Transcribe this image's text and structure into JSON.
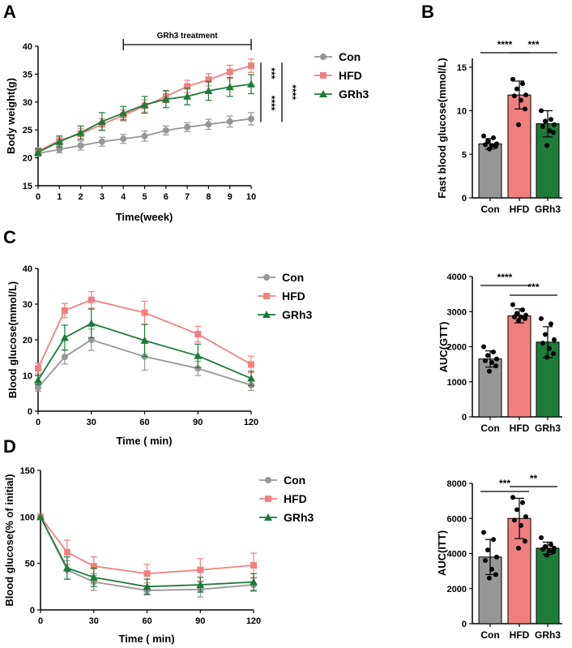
{
  "colors": {
    "con": "#969696",
    "hfd": "#F08080",
    "grh3": "#1E7B3A",
    "axis": "#000000"
  },
  "legend": [
    {
      "key": "con",
      "label": "Con",
      "marker": "circle"
    },
    {
      "key": "hfd",
      "label": "HFD",
      "marker": "square"
    },
    {
      "key": "grh3",
      "label": "GRh3",
      "marker": "triangle"
    }
  ],
  "chart_data": [
    {
      "panel": "A",
      "type": "line",
      "xlabel": "Time(week)",
      "ylabel": "Body weight(g)",
      "xlim": [
        0,
        10
      ],
      "ylim": [
        15,
        40
      ],
      "xticks": [
        0,
        1,
        2,
        3,
        4,
        5,
        6,
        7,
        8,
        9,
        10
      ],
      "yticks": [
        15,
        20,
        25,
        30,
        35,
        40
      ],
      "treatment_label": "GRh3 treatment",
      "treatment_range": [
        4,
        10
      ],
      "x": [
        0,
        1,
        2,
        3,
        4,
        5,
        6,
        7,
        8,
        9,
        10
      ],
      "series": [
        {
          "key": "con",
          "name": "Con",
          "values": [
            20.8,
            21.5,
            22.2,
            22.9,
            23.4,
            23.9,
            24.9,
            25.5,
            26.0,
            26.5,
            27.0
          ],
          "err": [
            0.5,
            0.6,
            0.8,
            0.8,
            0.8,
            0.9,
            0.8,
            0.8,
            0.9,
            1.0,
            1.1
          ]
        },
        {
          "key": "hfd",
          "name": "HFD",
          "values": [
            21.2,
            23.1,
            24.3,
            26.0,
            27.6,
            29.3,
            31.0,
            32.8,
            34.0,
            35.4,
            36.5
          ],
          "err": [
            0.6,
            0.8,
            0.9,
            1.0,
            1.0,
            1.1,
            1.1,
            1.1,
            1.1,
            1.2,
            1.2
          ]
        },
        {
          "key": "grh3",
          "name": "GRh3",
          "values": [
            21.0,
            22.9,
            24.5,
            26.5,
            28.0,
            29.5,
            30.5,
            31.0,
            32.0,
            32.7,
            33.2
          ],
          "err": [
            0.6,
            1.0,
            1.2,
            1.6,
            1.2,
            1.5,
            1.5,
            1.5,
            1.7,
            1.7,
            1.7
          ]
        }
      ],
      "significance": [
        {
          "label": "***",
          "from": "hfd",
          "to": "grh3"
        },
        {
          "label": "****",
          "from": "grh3",
          "to": "con"
        },
        {
          "label": "****",
          "from": "hfd",
          "to": "con"
        }
      ]
    },
    {
      "panel": "B",
      "type": "bar",
      "ylabel": "Fast blood glucose(mmol/L)",
      "ylim": [
        0,
        16
      ],
      "yticks": [
        0,
        5,
        10,
        15
      ],
      "categories": [
        "Con",
        "HFD",
        "GRh3"
      ],
      "values": [
        6.2,
        11.8,
        8.5
      ],
      "err": [
        0.6,
        1.6,
        1.5
      ],
      "points": [
        [
          7.1,
          6.9,
          6.5,
          6.2,
          6.1,
          6.0,
          5.9,
          5.6
        ],
        [
          13.6,
          13.1,
          12.5,
          11.8,
          11.7,
          11.2,
          10.2,
          8.4
        ],
        [
          10.0,
          9.0,
          8.8,
          8.4,
          8.2,
          7.7,
          7.5,
          6.0
        ]
      ],
      "significance": [
        {
          "label": "****",
          "from": 0,
          "to": 1
        },
        {
          "label": "***",
          "from": 1,
          "to": 2
        }
      ]
    },
    {
      "panel": "C",
      "type": "line",
      "xlabel": "Time ( min)",
      "ylabel": "Blood glucose(mmol/L)",
      "xlim": [
        0,
        120
      ],
      "ylim": [
        0,
        40
      ],
      "xticks": [
        0,
        30,
        60,
        90,
        120
      ],
      "yticks": [
        0,
        10,
        20,
        30,
        40
      ],
      "x": [
        0,
        15,
        30,
        60,
        90,
        120
      ],
      "series": [
        {
          "key": "con",
          "name": "Con",
          "values": [
            6.6,
            15.2,
            20.0,
            15.3,
            12.0,
            7.3
          ],
          "err": [
            1.0,
            2.0,
            3.0,
            3.8,
            2.0,
            1.5
          ]
        },
        {
          "key": "hfd",
          "name": "HFD",
          "values": [
            12.0,
            28.2,
            31.2,
            27.6,
            21.6,
            13.1
          ],
          "err": [
            1.5,
            2.0,
            2.3,
            3.2,
            2.2,
            2.3
          ]
        },
        {
          "key": "grh3",
          "name": "GRh3",
          "values": [
            8.7,
            20.6,
            24.6,
            19.8,
            15.5,
            9.2
          ],
          "err": [
            1.3,
            3.5,
            4.0,
            4.5,
            3.3,
            2.0
          ]
        }
      ]
    },
    {
      "panel": "C-AUC",
      "type": "bar",
      "ylabel": "AUC(GTT)",
      "ylim": [
        0,
        4000
      ],
      "yticks": [
        0,
        1000,
        2000,
        3000,
        4000
      ],
      "categories": [
        "Con",
        "HFD",
        "GRh3"
      ],
      "values": [
        1650,
        2880,
        2130
      ],
      "err": [
        230,
        200,
        440
      ],
      "points": [
        [
          2000,
          1850,
          1750,
          1650,
          1600,
          1550,
          1450,
          1300
        ],
        [
          3200,
          3050,
          2950,
          2900,
          2850,
          2850,
          2800,
          2750
        ],
        [
          2800,
          2650,
          2350,
          2200,
          2100,
          1950,
          1800,
          1700
        ]
      ],
      "significance": [
        {
          "label": "****",
          "from": 0,
          "to": 1
        },
        {
          "label": "***",
          "from": 1,
          "to": 2
        }
      ]
    },
    {
      "panel": "D",
      "type": "line",
      "xlabel": "Time ( min)",
      "ylabel": "Blood glucose(% of initial)",
      "xlim": [
        0,
        120
      ],
      "ylim": [
        0,
        150
      ],
      "xticks": [
        0,
        30,
        60,
        90,
        120
      ],
      "yticks": [
        0,
        50,
        100,
        150
      ],
      "x": [
        0,
        15,
        30,
        60,
        90,
        120
      ],
      "series": [
        {
          "key": "con",
          "name": "Con",
          "values": [
            100,
            43,
            30,
            21,
            22,
            27
          ],
          "err": [
            0,
            10,
            9,
            5,
            8,
            7
          ]
        },
        {
          "key": "hfd",
          "name": "HFD",
          "values": [
            100,
            62,
            47,
            39,
            43,
            48
          ],
          "err": [
            0,
            13,
            10,
            10,
            12,
            13
          ]
        },
        {
          "key": "grh3",
          "name": "GRh3",
          "values": [
            100,
            45,
            35,
            25,
            27,
            30
          ],
          "err": [
            0,
            12,
            10,
            8,
            8,
            9
          ]
        }
      ]
    },
    {
      "panel": "D-AUC",
      "type": "bar",
      "ylabel": "AUC(ITT)",
      "ylim": [
        0,
        8000
      ],
      "yticks": [
        0,
        2000,
        4000,
        6000,
        8000
      ],
      "categories": [
        "Con",
        "HFD",
        "GRh3"
      ],
      "values": [
        3800,
        6000,
        4300
      ],
      "err": [
        1000,
        1150,
        350
      ],
      "points": [
        [
          5200,
          4800,
          4200,
          3800,
          3600,
          3100,
          2800,
          2600
        ],
        [
          7200,
          6900,
          6500,
          6100,
          5900,
          5600,
          4700,
          4300
        ],
        [
          4900,
          4500,
          4400,
          4300,
          4250,
          4150,
          4100,
          3900
        ]
      ],
      "significance": [
        {
          "label": "***",
          "from": 0,
          "to": 1
        },
        {
          "label": "**",
          "from": 1,
          "to": 2
        }
      ]
    }
  ],
  "panel_labels": {
    "a": "A",
    "b": "B",
    "c": "C",
    "d": "D"
  },
  "figure": {
    "line_panels": [
      0,
      2,
      4
    ],
    "bar_panels": [
      1,
      3,
      5
    ]
  }
}
